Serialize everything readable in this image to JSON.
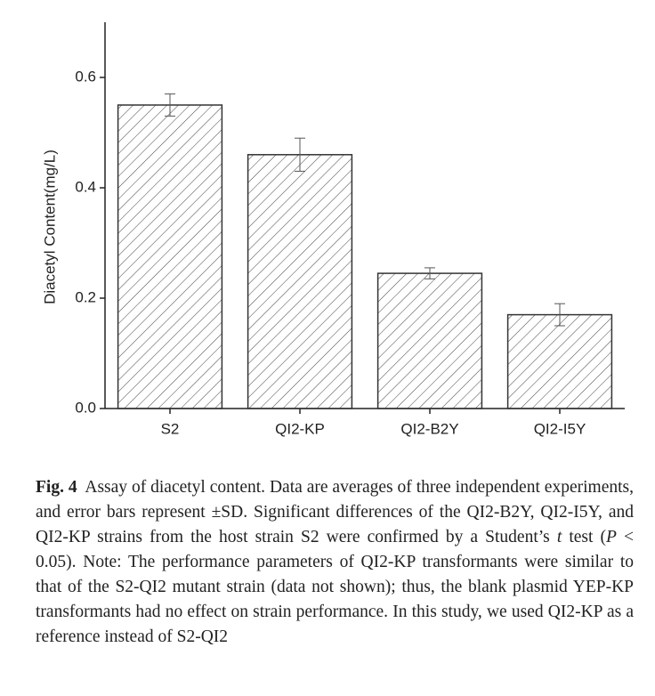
{
  "chart_data": {
    "type": "bar",
    "y_label": "Diacetyl Content(mg/L)",
    "categories": [
      "S2",
      "QI2-KP",
      "QI2-B2Y",
      "QI2-I5Y"
    ],
    "values": [
      0.55,
      0.46,
      0.245,
      0.17
    ],
    "errors": [
      0.02,
      0.03,
      0.01,
      0.02
    ],
    "color": "#333333",
    "ylim": [
      0,
      0.7
    ],
    "yticks": [
      {
        "value": 0,
        "label": "0.0"
      },
      0.2,
      0.4,
      0.6
    ],
    "grid": false
  },
  "caption": {
    "label": "Fig. 4",
    "parts": [
      "Assay of diacetyl content. Data are averages of three independent experiments, and error bars represent ±SD. Significant differences of the QI2-B2Y, QI2-I5Y, and QI2-KP strains from the host strain S2 were confirmed by a Student’s ",
      "t",
      " test (",
      "P",
      " < 0.05). Note: The performance parameters of QI2-KP transformants were similar to that of the S2-QI2 mutant strain (data not shown); thus, the blank plasmid YEP-KP transformants had no effect on strain performance. In this study, we used QI2-KP as a reference instead of S2-QI2"
    ]
  }
}
